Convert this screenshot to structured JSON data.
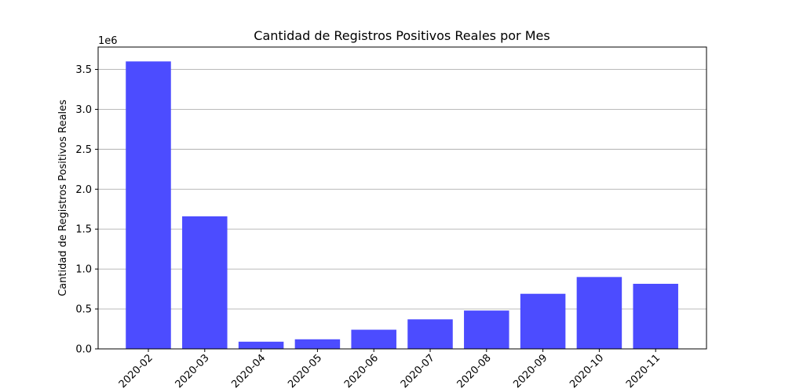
{
  "chart_data": {
    "type": "bar",
    "title": "Cantidad de Registros Positivos Reales por Mes",
    "xlabel": "",
    "ylabel": "Cantidad de Registros Positivos Reales",
    "scale_label": "1e6",
    "categories": [
      "2020-02",
      "2020-03",
      "2020-04",
      "2020-05",
      "2020-06",
      "2020-07",
      "2020-08",
      "2020-09",
      "2020-10",
      "2020-11"
    ],
    "values": [
      3600000,
      1660000,
      90000,
      120000,
      240000,
      370000,
      480000,
      690000,
      900000,
      815000
    ],
    "yticks": [
      0.0,
      0.5,
      1.0,
      1.5,
      2.0,
      2.5,
      3.0,
      3.5
    ],
    "ytick_labels": [
      "0.0",
      "0.5",
      "1.0",
      "1.5",
      "2.0",
      "2.5",
      "3.0",
      "3.5"
    ],
    "ylim": [
      0,
      3780000
    ],
    "grid": "y",
    "bar_color": "#4c4cff"
  }
}
